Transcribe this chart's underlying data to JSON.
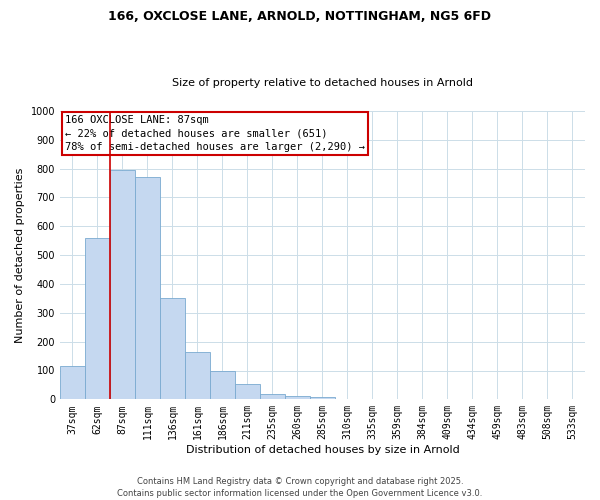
{
  "title1": "166, OXCLOSE LANE, ARNOLD, NOTTINGHAM, NG5 6FD",
  "title2": "Size of property relative to detached houses in Arnold",
  "xlabel": "Distribution of detached houses by size in Arnold",
  "ylabel": "Number of detached properties",
  "bar_labels": [
    "37sqm",
    "62sqm",
    "87sqm",
    "111sqm",
    "136sqm",
    "161sqm",
    "186sqm",
    "211sqm",
    "235sqm",
    "260sqm",
    "285sqm",
    "310sqm",
    "335sqm",
    "359sqm",
    "384sqm",
    "409sqm",
    "434sqm",
    "459sqm",
    "483sqm",
    "508sqm",
    "533sqm"
  ],
  "bar_values": [
    115,
    560,
    795,
    770,
    350,
    165,
    100,
    53,
    18,
    10,
    8,
    0,
    0,
    0,
    0,
    0,
    0,
    0,
    0,
    0,
    0
  ],
  "bar_color": "#c5d8f0",
  "bar_edge_color": "#7aaad0",
  "vline_color": "#cc0000",
  "vline_x_index": 2,
  "ylim": [
    0,
    1000
  ],
  "yticks": [
    0,
    100,
    200,
    300,
    400,
    500,
    600,
    700,
    800,
    900,
    1000
  ],
  "annotation_title": "166 OXCLOSE LANE: 87sqm",
  "annotation_line1": "← 22% of detached houses are smaller (651)",
  "annotation_line2": "78% of semi-detached houses are larger (2,290) →",
  "annotation_box_color": "#ffffff",
  "annotation_box_edge_color": "#cc0000",
  "footer1": "Contains HM Land Registry data © Crown copyright and database right 2025.",
  "footer2": "Contains public sector information licensed under the Open Government Licence v3.0.",
  "background_color": "#ffffff",
  "grid_color": "#ccdde8",
  "title1_fontsize": 9,
  "title2_fontsize": 8,
  "xlabel_fontsize": 8,
  "ylabel_fontsize": 8,
  "tick_fontsize": 7,
  "annotation_fontsize": 7.5,
  "footer_fontsize": 6
}
